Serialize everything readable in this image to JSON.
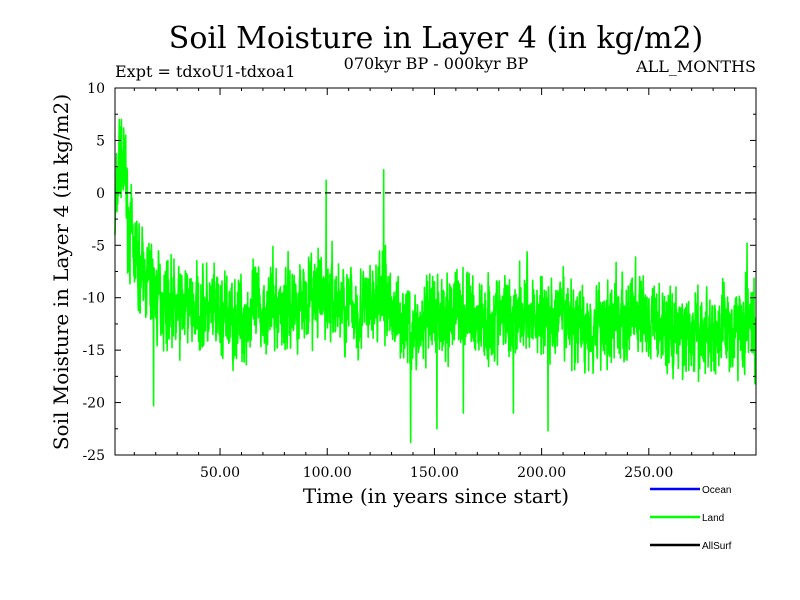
{
  "chart_data": {
    "type": "line",
    "title": "Soil Moisture in Layer 4 (in kg/m2)",
    "subtitle": "070kyr BP - 000kyr BP",
    "experiment": "Expt = tdxoU1-tdxoa1",
    "period": "ALL_MONTHS",
    "xlabel": "Time (in years since start)",
    "ylabel": "Soil Moisture in Layer 4 (in kg/m2)",
    "xlim": [
      1,
      300
    ],
    "ylim": [
      -25,
      10
    ],
    "xticks": [
      50,
      100,
      150,
      200,
      250
    ],
    "xtick_labels": [
      "50.00",
      "100.00",
      "150.00",
      "200.00",
      "250.00"
    ],
    "yticks": [
      10,
      5,
      0,
      -5,
      -10,
      -15,
      -20,
      -25
    ],
    "ytick_labels": [
      "10",
      "5",
      "0",
      "-5",
      "-10",
      "-15",
      "-20",
      "-25"
    ],
    "reference_line": 0,
    "legend_position": "bottom-right",
    "series": [
      {
        "name": "Land",
        "color": "#00ff00",
        "anchors_x": [
          1,
          2,
          3,
          4,
          5,
          6,
          7,
          8,
          9,
          10,
          12,
          15,
          18,
          20,
          25,
          30,
          40,
          50,
          60,
          70,
          80,
          90,
          100,
          110,
          120,
          126,
          130,
          135,
          140,
          145,
          150,
          160,
          170,
          180,
          190,
          200,
          210,
          220,
          230,
          240,
          250,
          260,
          270,
          280,
          290,
          296,
          300
        ],
        "anchors_y": [
          -3,
          0,
          3,
          2,
          2,
          0,
          -2,
          -4,
          -5,
          -6,
          -7,
          -8,
          -9,
          -10,
          -10,
          -11,
          -11,
          -12,
          -12,
          -11,
          -11,
          -10,
          -10,
          -11,
          -11,
          -10,
          -11,
          -12,
          -13,
          -13,
          -12,
          -11,
          -12,
          -12,
          -11,
          -12,
          -12,
          -13,
          -12,
          -12,
          -12,
          -13,
          -14,
          -13,
          -13,
          -12,
          -14
        ],
        "amplitude": 3.2,
        "extremes": [
          [
            3,
            7
          ],
          [
            4,
            7
          ],
          [
            6,
            5.5
          ],
          [
            19,
            -20.3
          ],
          [
            99.5,
            1.2
          ],
          [
            126.3,
            2.2
          ],
          [
            138.9,
            -23.8
          ],
          [
            151.2,
            -22.5
          ],
          [
            163.5,
            -21
          ],
          [
            186.8,
            -21
          ],
          [
            203,
            -22.7
          ],
          [
            295.8,
            -4.8
          ],
          [
            299.5,
            -18.2
          ]
        ],
        "seed": 7
      },
      {
        "name": "Ocean",
        "color": "#0000ff",
        "anchors_x": [],
        "anchors_y": []
      },
      {
        "name": "AllSurf",
        "color": "#000000",
        "anchors_x": [],
        "anchors_y": []
      }
    ],
    "legend": [
      {
        "name": "Ocean",
        "color": "#0000ff"
      },
      {
        "name": "Land",
        "color": "#00ff00"
      },
      {
        "name": "AllSurf",
        "color": "#000000"
      }
    ]
  }
}
